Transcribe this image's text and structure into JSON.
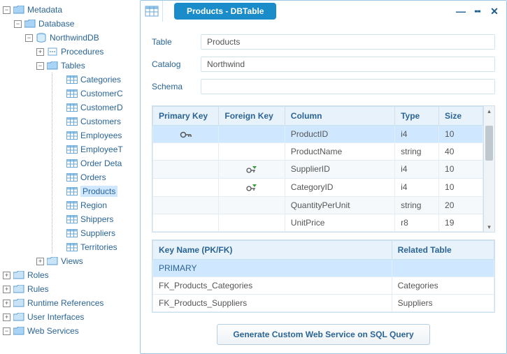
{
  "tree": {
    "root": "Metadata",
    "database": "Database",
    "northwind": "NorthwindDB",
    "procedures": "Procedures",
    "tables": "Tables",
    "views": "Views",
    "roles": "Roles",
    "rules": "Rules",
    "runtime": "Runtime References",
    "ui": "User Interfaces",
    "ws": "Web Services",
    "table_items": [
      "Categories",
      "CustomerC",
      "CustomerD",
      "Customers",
      "Employees",
      "EmployeeT",
      "Order Deta",
      "Orders",
      "Products",
      "Region",
      "Shippers",
      "Suppliers",
      "Territories"
    ],
    "selected_table_index": 8
  },
  "panel": {
    "title": "Products - DBTable",
    "form": {
      "table_label": "Table",
      "table_value": "Products",
      "catalog_label": "Catalog",
      "catalog_value": "Northwind",
      "schema_label": "Schema",
      "schema_value": ""
    },
    "columns_grid": {
      "headers": [
        "Primary Key",
        "Foreign Key",
        "Column",
        "Type",
        "Size"
      ],
      "col_widths": [
        "90px",
        "90px",
        "150px",
        "60px",
        "60px"
      ],
      "rows": [
        {
          "pk": true,
          "fk": false,
          "col": "ProductID",
          "type": "i4",
          "size": "10",
          "sel": true
        },
        {
          "pk": false,
          "fk": false,
          "col": "ProductName",
          "type": "string",
          "size": "40"
        },
        {
          "pk": false,
          "fk": true,
          "col": "SupplierID",
          "type": "i4",
          "size": "10",
          "alt": true
        },
        {
          "pk": false,
          "fk": true,
          "col": "CategoryID",
          "type": "i4",
          "size": "10"
        },
        {
          "pk": false,
          "fk": false,
          "col": "QuantityPerUnit",
          "type": "string",
          "size": "20",
          "alt": true
        },
        {
          "pk": false,
          "fk": false,
          "col": "UnitPrice",
          "type": "r8",
          "size": "19"
        }
      ]
    },
    "keys_grid": {
      "headers": [
        "Key Name (PK/FK)",
        "Related Table"
      ],
      "rows": [
        {
          "name": "PRIMARY",
          "related": "",
          "sel": true
        },
        {
          "name": "FK_Products_Categories",
          "related": "Categories"
        },
        {
          "name": "FK_Products_Suppliers",
          "related": "Suppliers"
        }
      ]
    },
    "button": "Generate Custom Web Service on SQL Query"
  },
  "colors": {
    "accent": "#1a8cc9",
    "link": "#2a6496",
    "selection": "#cfe8ff",
    "header_bg": "#e8f2fa",
    "border": "#cde0ee"
  }
}
